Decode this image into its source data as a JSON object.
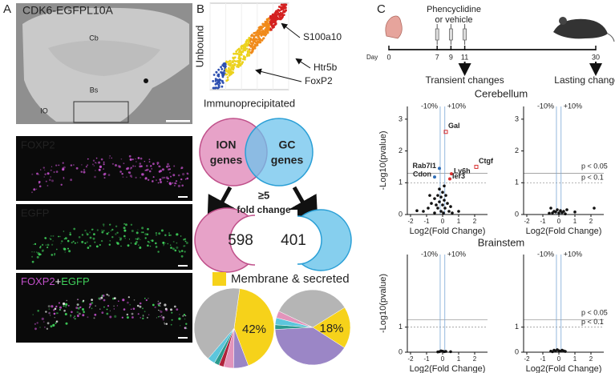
{
  "panel_a": {
    "label": "A",
    "title": "CDK6-EGFPL10A",
    "regions": [
      "Cb",
      "Bs",
      "IO"
    ],
    "stains": [
      "FOXP2",
      "EGFP"
    ],
    "merged": [
      "FOXP2",
      "+",
      "EGFP"
    ]
  },
  "panel_b": {
    "label": "B",
    "y_label": "Unbound",
    "x_label": "Immunoprecipitated",
    "annotations": [
      "S100a10",
      "Htr5b",
      "FoxP2"
    ],
    "venn": [
      [
        "ION",
        "genes"
      ],
      [
        "GC",
        "genes"
      ]
    ],
    "criterion": [
      "≥5",
      "fold change"
    ],
    "counts": [
      598,
      401
    ],
    "legend": "Membrane & secreted",
    "pies": [
      {
        "values": [
          42,
          6,
          4,
          2,
          2,
          3,
          41
        ],
        "colors": [
          "#f6d21a",
          "#9b86c6",
          "#e394bb",
          "#b0223a",
          "#2b9a8e",
          "#5cc6dc",
          "#b5b5b5"
        ],
        "label": "42%"
      },
      {
        "values": [
          18,
          40,
          2,
          3,
          3,
          34
        ],
        "colors": [
          "#f6d21a",
          "#9b86c6",
          "#2b9a8e",
          "#5cc6dc",
          "#e394bb",
          "#b5b5b5"
        ],
        "label": "18%"
      }
    ]
  },
  "panel_c": {
    "label": "C",
    "treatment": [
      "Phencyclidine",
      "or vehicle"
    ],
    "day_label": "Day",
    "days": [
      0,
      7,
      9,
      11,
      30
    ],
    "outcomes": [
      "Transient changes",
      "Lasting changes"
    ],
    "regions": [
      "Cerebellum",
      "Brainstem"
    ],
    "x_label": "Log2(Fold Change)",
    "y_label": "-Log10(pvalue)",
    "vline_labels": [
      "-10%",
      "+10%"
    ],
    "vlines": [
      -0.152,
      0.138
    ],
    "thresholds": [
      1.301,
      1
    ],
    "threshold_labels": [
      "p < 0.05",
      "p < 0.1"
    ],
    "plots": [
      {
        "xlim": [
          -2.2,
          2.4
        ],
        "ylim": [
          0,
          3.4
        ],
        "xticks": [
          -2,
          -1,
          0,
          1,
          2
        ],
        "yticks": [
          0,
          1,
          2,
          3
        ],
        "show_y_label": true,
        "show_threshold_labels": false,
        "points": [
          [
            -1.6,
            0.12
          ],
          [
            -1.2,
            0.1
          ],
          [
            -0.9,
            0.2
          ],
          [
            -0.7,
            0.35
          ],
          [
            -0.5,
            0.5
          ],
          [
            -0.4,
            0.3
          ],
          [
            -0.3,
            0.6
          ],
          [
            -0.3,
            0.2
          ],
          [
            -0.2,
            0.8
          ],
          [
            -0.2,
            0.4
          ],
          [
            -0.1,
            0.1
          ],
          [
            -0.1,
            0.55
          ],
          [
            0,
            0.3
          ],
          [
            0,
            0.7
          ],
          [
            0.05,
            0.05
          ],
          [
            0.1,
            0.45
          ],
          [
            0.1,
            0.9
          ],
          [
            0.15,
            0.2
          ],
          [
            0.2,
            0.6
          ],
          [
            0.3,
            0.35
          ],
          [
            0.4,
            0.1
          ],
          [
            0.5,
            0.25
          ],
          [
            -0.5,
            0.05
          ],
          [
            -0.8,
            0.6
          ],
          [
            0.6,
            0.05
          ],
          [
            1.0,
            0.1
          ]
        ],
        "genes": [
          {
            "name": "Gal",
            "x": 0.2,
            "y": 2.6,
            "color": "#d93030",
            "open": true
          },
          {
            "name": "Ctgf",
            "x": 2.1,
            "y": 1.5,
            "color": "#d93030",
            "open": true
          },
          {
            "name": "Ly6h",
            "x": 0.55,
            "y": 1.28,
            "color": "#d93030",
            "open": false
          },
          {
            "name": "Ier3",
            "x": 0.45,
            "y": 1.12,
            "color": "#d93030",
            "open": false
          },
          {
            "name": "Rab7l1",
            "x": -0.2,
            "y": 1.45,
            "color": "#2f6db5",
            "open": false
          },
          {
            "name": "Cdon",
            "x": -0.5,
            "y": 1.18,
            "color": "#2f6db5",
            "open": false
          }
        ]
      },
      {
        "xlim": [
          -2.2,
          2.4
        ],
        "ylim": [
          0,
          3.4
        ],
        "xticks": [
          -2,
          -1,
          0,
          1,
          2
        ],
        "yticks": [
          0,
          1,
          2,
          3
        ],
        "show_y_label": false,
        "show_threshold_labels": true,
        "points": [
          [
            -0.4,
            0.05
          ],
          [
            -0.3,
            0.1
          ],
          [
            -0.2,
            0.08
          ],
          [
            -0.1,
            0.15
          ],
          [
            0,
            0.05
          ],
          [
            0.1,
            0.12
          ],
          [
            0.2,
            0.06
          ],
          [
            0.3,
            0.1
          ],
          [
            -0.5,
            0.2
          ],
          [
            0.5,
            0.15
          ],
          [
            1.0,
            0.08
          ],
          [
            2.2,
            0.2
          ],
          [
            -0.6,
            0.04
          ],
          [
            0.4,
            0.02
          ]
        ],
        "genes": []
      },
      {
        "xlim": [
          -2.2,
          2.4
        ],
        "ylim": [
          0,
          3.9
        ],
        "xticks": [
          -2,
          -1,
          0,
          1,
          2
        ],
        "yticks": [
          0,
          1
        ],
        "show_y_label": true,
        "show_threshold_labels": false,
        "points": [
          [
            -0.2,
            0.02
          ],
          [
            0,
            0.04
          ],
          [
            0.2,
            0.03
          ],
          [
            -0.1,
            0.05
          ],
          [
            0.5,
            0.02
          ],
          [
            -0.3,
            0.01
          ],
          [
            0.1,
            0.02
          ]
        ],
        "genes": []
      },
      {
        "xlim": [
          -2.2,
          2.4
        ],
        "ylim": [
          0,
          3.9
        ],
        "xticks": [
          -2,
          -1,
          0,
          1,
          2
        ],
        "yticks": [
          0,
          1
        ],
        "show_y_label": false,
        "show_threshold_labels": true,
        "points": [
          [
            -0.5,
            0.04
          ],
          [
            -0.3,
            0.08
          ],
          [
            -0.2,
            0.05
          ],
          [
            -0.1,
            0.1
          ],
          [
            0,
            0.06
          ],
          [
            0.1,
            0.04
          ],
          [
            0.2,
            0.08
          ],
          [
            0.3,
            0.05
          ],
          [
            0.4,
            0.03
          ],
          [
            -0.4,
            0.02
          ]
        ],
        "genes": []
      }
    ]
  }
}
